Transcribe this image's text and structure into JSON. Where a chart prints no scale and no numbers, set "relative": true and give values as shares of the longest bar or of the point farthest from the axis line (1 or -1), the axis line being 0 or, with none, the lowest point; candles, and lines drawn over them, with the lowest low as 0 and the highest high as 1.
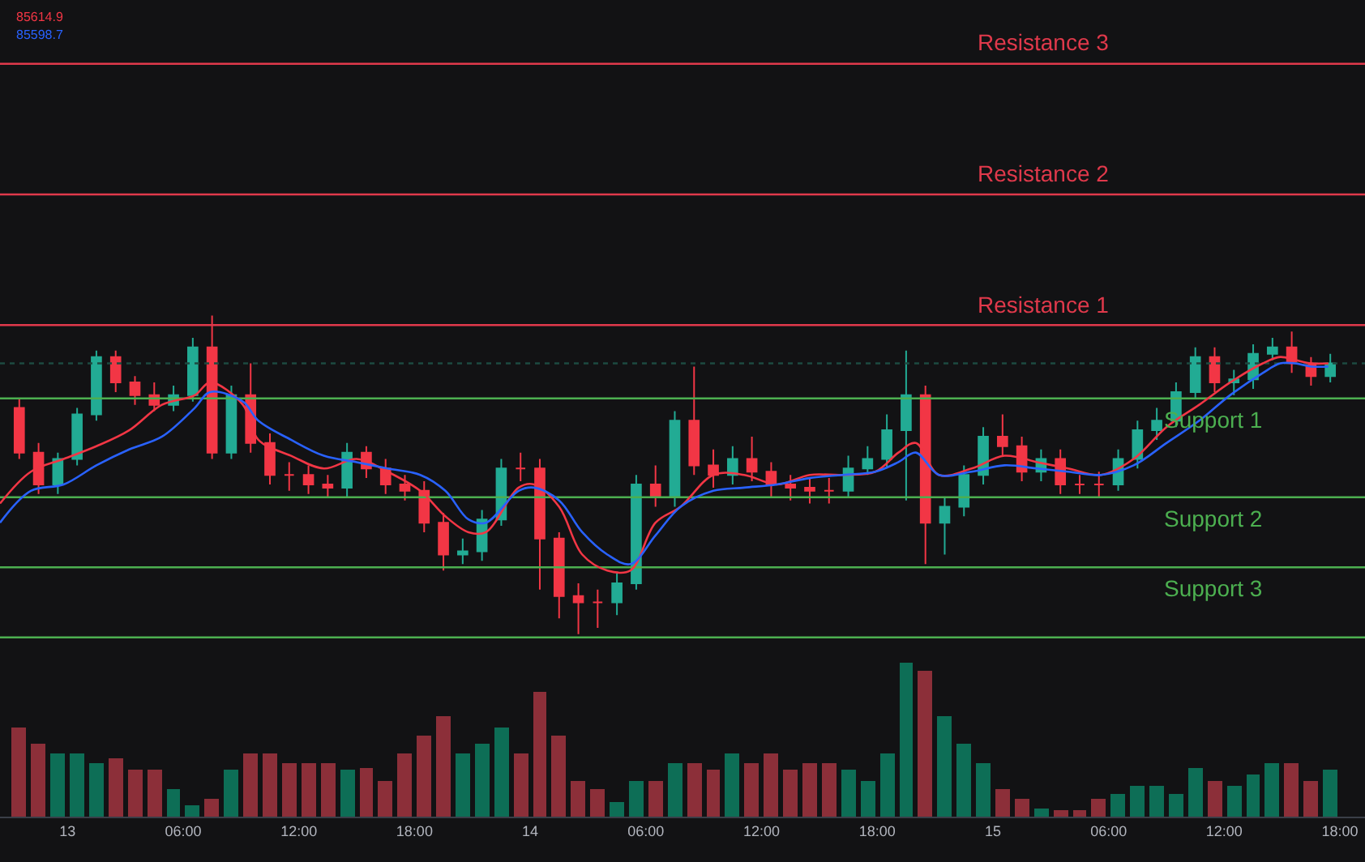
{
  "chart_data": [
    {
      "type": "candlestick",
      "relative": true,
      "x": [
        "--03-12T21:30",
        "--03-12T22:30",
        "--03-12T23:30",
        "--03-13T00:30",
        "--03-13T01:30",
        "--03-13T02:30",
        "--03-13T03:30",
        "--03-13T04:30",
        "--03-13T05:30",
        "--03-13T06:30",
        "--03-13T07:30",
        "--03-13T08:30",
        "--03-13T09:30",
        "--03-13T10:30",
        "--03-13T11:30",
        "--03-13T12:30",
        "--03-13T13:30",
        "--03-13T14:30",
        "--03-13T15:30",
        "--03-13T16:30",
        "--03-13T17:30",
        "--03-13T18:30",
        "--03-13T19:30",
        "--03-13T20:30",
        "--03-13T21:30",
        "--03-13T22:30",
        "--03-13T23:30",
        "--03-14T00:30",
        "--03-14T01:30",
        "--03-14T02:30",
        "--03-14T03:30",
        "--03-14T04:30",
        "--03-14T05:30",
        "--03-14T06:30",
        "--03-14T07:30",
        "--03-14T08:30",
        "--03-14T09:30",
        "--03-14T10:30",
        "--03-14T11:30",
        "--03-14T12:30",
        "--03-14T13:30",
        "--03-14T14:30",
        "--03-14T15:30",
        "--03-14T16:30",
        "--03-14T17:30",
        "--03-14T18:30",
        "--03-14T19:30",
        "--03-14T20:30",
        "--03-14T21:30",
        "--03-14T22:30",
        "--03-14T23:30",
        "--03-15T00:30",
        "--03-15T01:30",
        "--03-15T02:30",
        "--03-15T03:30",
        "--03-15T04:30",
        "--03-15T05:30",
        "--03-15T06:30",
        "--03-15T07:30",
        "--03-15T08:30",
        "--03-15T09:30",
        "--03-15T10:30",
        "--03-15T11:30",
        "--03-15T12:30",
        "--03-15T13:30",
        "--03-15T14:30",
        "--03-15T15:30",
        "--03-15T16:30",
        "--03-15T17:30"
      ],
      "ohlc": [
        [
          0.71,
          0.74,
          0.55,
          0.57
        ],
        [
          0.57,
          0.6,
          0.44,
          0.47
        ],
        [
          0.47,
          0.57,
          0.44,
          0.55
        ],
        [
          0.55,
          0.71,
          0.53,
          0.69
        ],
        [
          0.69,
          0.89,
          0.67,
          0.87
        ],
        [
          0.87,
          0.89,
          0.76,
          0.79
        ],
        [
          0.79,
          0.81,
          0.72,
          0.75
        ],
        [
          0.75,
          0.79,
          0.7,
          0.72
        ],
        [
          0.72,
          0.78,
          0.7,
          0.75
        ],
        [
          0.75,
          0.93,
          0.73,
          0.9
        ],
        [
          0.9,
          1.0,
          0.55,
          0.57
        ],
        [
          0.57,
          0.78,
          0.55,
          0.75
        ],
        [
          0.75,
          0.85,
          0.57,
          0.6
        ],
        [
          0.6,
          0.63,
          0.47,
          0.5
        ],
        [
          0.5,
          0.54,
          0.45,
          0.5
        ],
        [
          0.5,
          0.53,
          0.44,
          0.47
        ],
        [
          0.47,
          0.5,
          0.43,
          0.46
        ],
        [
          0.46,
          0.6,
          0.43,
          0.57
        ],
        [
          0.57,
          0.59,
          0.49,
          0.52
        ],
        [
          0.52,
          0.55,
          0.44,
          0.47
        ],
        [
          0.47,
          0.5,
          0.42,
          0.45
        ],
        [
          0.45,
          0.48,
          0.32,
          0.35
        ],
        [
          0.35,
          0.38,
          0.2,
          0.25
        ],
        [
          0.25,
          0.3,
          0.22,
          0.26
        ],
        [
          0.26,
          0.39,
          0.23,
          0.36
        ],
        [
          0.36,
          0.55,
          0.34,
          0.52
        ],
        [
          0.52,
          0.57,
          0.48,
          0.52
        ],
        [
          0.52,
          0.55,
          0.14,
          0.3
        ],
        [
          0.3,
          0.32,
          0.05,
          0.12
        ],
        [
          0.12,
          0.16,
          0.0,
          0.1
        ],
        [
          0.1,
          0.14,
          0.02,
          0.1
        ],
        [
          0.1,
          0.19,
          0.06,
          0.16
        ],
        [
          0.16,
          0.5,
          0.14,
          0.47
        ],
        [
          0.47,
          0.53,
          0.4,
          0.43
        ],
        [
          0.43,
          0.7,
          0.4,
          0.67
        ],
        [
          0.67,
          0.84,
          0.5,
          0.53
        ],
        [
          0.53,
          0.58,
          0.46,
          0.5
        ],
        [
          0.5,
          0.59,
          0.47,
          0.55
        ],
        [
          0.55,
          0.62,
          0.48,
          0.51
        ],
        [
          0.51,
          0.54,
          0.43,
          0.47
        ],
        [
          0.47,
          0.5,
          0.42,
          0.46
        ],
        [
          0.46,
          0.49,
          0.41,
          0.45
        ],
        [
          0.45,
          0.49,
          0.41,
          0.45
        ],
        [
          0.45,
          0.56,
          0.43,
          0.52
        ],
        [
          0.52,
          0.59,
          0.5,
          0.55
        ],
        [
          0.55,
          0.69,
          0.52,
          0.64
        ],
        [
          0.64,
          0.89,
          0.42,
          0.75
        ],
        [
          0.75,
          0.78,
          0.22,
          0.35
        ],
        [
          0.35,
          0.43,
          0.25,
          0.4
        ],
        [
          0.4,
          0.53,
          0.37,
          0.5
        ],
        [
          0.5,
          0.65,
          0.47,
          0.62
        ],
        [
          0.62,
          0.69,
          0.56,
          0.59
        ],
        [
          0.59,
          0.62,
          0.48,
          0.51
        ],
        [
          0.51,
          0.58,
          0.48,
          0.55
        ],
        [
          0.55,
          0.58,
          0.44,
          0.47
        ],
        [
          0.47,
          0.5,
          0.44,
          0.47
        ],
        [
          0.47,
          0.51,
          0.43,
          0.47
        ],
        [
          0.47,
          0.58,
          0.45,
          0.55
        ],
        [
          0.55,
          0.67,
          0.52,
          0.64
        ],
        [
          0.64,
          0.71,
          0.61,
          0.67
        ],
        [
          0.67,
          0.79,
          0.65,
          0.76
        ],
        [
          0.76,
          0.9,
          0.74,
          0.87
        ],
        [
          0.87,
          0.9,
          0.76,
          0.79
        ],
        [
          0.79,
          0.83,
          0.75,
          0.8
        ],
        [
          0.8,
          0.91,
          0.77,
          0.88
        ],
        [
          0.88,
          0.93,
          0.86,
          0.9
        ],
        [
          0.9,
          0.95,
          0.82,
          0.85
        ],
        [
          0.85,
          0.87,
          0.78,
          0.81
        ],
        [
          0.81,
          0.88,
          0.79,
          0.85
        ]
      ],
      "colors": [
        "#f23645",
        "#f23645",
        "#22ab94",
        "#22ab94",
        "#22ab94",
        "#f23645",
        "#f23645",
        "#f23645",
        "#22ab94",
        "#22ab94",
        "#f23645",
        "#22ab94",
        "#f23645",
        "#f23645",
        "#f23645",
        "#f23645",
        "#f23645",
        "#22ab94",
        "#f23645",
        "#f23645",
        "#f23645",
        "#f23645",
        "#f23645",
        "#22ab94",
        "#22ab94",
        "#22ab94",
        "#f23645",
        "#f23645",
        "#f23645",
        "#f23645",
        "#f23645",
        "#22ab94",
        "#22ab94",
        "#f23645",
        "#22ab94",
        "#f23645",
        "#f23645",
        "#22ab94",
        "#f23645",
        "#f23645",
        "#f23645",
        "#f23645",
        "#f23645",
        "#22ab94",
        "#22ab94",
        "#22ab94",
        "#22ab94",
        "#f23645",
        "#22ab94",
        "#22ab94",
        "#22ab94",
        "#f23645",
        "#f23645",
        "#22ab94",
        "#f23645",
        "#f23645",
        "#f23645",
        "#22ab94",
        "#22ab94",
        "#22ab94",
        "#22ab94",
        "#22ab94",
        "#f23645",
        "#22ab94",
        "#22ab94",
        "#22ab94",
        "#f23645",
        "#f23645",
        "#22ab94"
      ],
      "series": [
        {
          "type": "line",
          "color": "#f23645",
          "x": [
            "--03-12T20:30",
            "--03-12T22:06",
            "--03-12T23:48",
            "--03-13T01:30",
            "--03-13T03:12",
            "--03-13T04:54",
            "--03-13T06:36",
            "--03-13T07:24",
            "--03-13T09:06",
            "--03-13T09:54",
            "--03-13T11:36",
            "--03-13T13:18",
            "--03-13T15:00",
            "--03-13T16:36",
            "--03-13T18:18",
            "--03-13T19:36",
            "--03-13T20:48",
            "--03-13T21:42",
            "--03-13T23:24",
            "--03-14T00:12",
            "--03-14T01:30",
            "--03-14T02:42",
            "--03-14T04:00",
            "--03-14T05:12",
            "--03-14T06:30",
            "--03-14T07:48",
            "--03-14T09:30",
            "--03-14T11:06",
            "--03-14T12:48",
            "--03-14T14:30",
            "--03-14T16:12",
            "--03-14T17:54",
            "--03-14T19:06",
            "--03-14T20:00",
            "--03-14T21:12",
            "--03-14T22:54",
            "--03-15T00:36",
            "--03-15T02:18",
            "--03-15T03:54",
            "--03-15T05:36",
            "--03-15T07:18",
            "--03-15T09:00",
            "--03-15T10:42",
            "--03-15T12:18",
            "--03-15T14:00",
            "--03-15T14:54",
            "--03-15T15:42",
            "--03-15T16:30",
            "--03-15T17:24"
          ],
          "values": [
            0.41,
            0.51,
            0.55,
            0.59,
            0.64,
            0.72,
            0.75,
            0.79,
            0.72,
            0.61,
            0.56,
            0.52,
            0.55,
            0.51,
            0.45,
            0.37,
            0.32,
            0.32,
            0.46,
            0.47,
            0.4,
            0.25,
            0.2,
            0.2,
            0.35,
            0.4,
            0.5,
            0.5,
            0.47,
            0.5,
            0.5,
            0.51,
            0.57,
            0.6,
            0.5,
            0.52,
            0.56,
            0.54,
            0.52,
            0.5,
            0.55,
            0.65,
            0.72,
            0.79,
            0.85,
            0.87,
            0.86,
            0.85,
            0.85
          ]
        },
        {
          "type": "line",
          "color": "#2962ff",
          "x": [
            "--03-12T20:30",
            "--03-12T22:06",
            "--03-12T23:48",
            "--03-13T01:30",
            "--03-13T03:12",
            "--03-13T04:54",
            "--03-13T06:36",
            "--03-13T07:24",
            "--03-13T09:06",
            "--03-13T09:54",
            "--03-13T11:36",
            "--03-13T13:18",
            "--03-13T15:00",
            "--03-13T16:36",
            "--03-13T18:18",
            "--03-13T19:36",
            "--03-13T20:48",
            "--03-13T21:42",
            "--03-13T23:24",
            "--03-14T00:12",
            "--03-14T01:30",
            "--03-14T02:42",
            "--03-14T04:00",
            "--03-14T05:12",
            "--03-14T06:30",
            "--03-14T07:48",
            "--03-14T09:30",
            "--03-14T11:06",
            "--03-14T12:48",
            "--03-14T14:30",
            "--03-14T16:12",
            "--03-14T17:54",
            "--03-14T19:06",
            "--03-14T20:00",
            "--03-14T21:12",
            "--03-14T22:54",
            "--03-15T00:36",
            "--03-15T02:18",
            "--03-15T03:54",
            "--03-15T05:36",
            "--03-15T07:18",
            "--03-15T09:00",
            "--03-15T10:42",
            "--03-15T12:18",
            "--03-15T14:00",
            "--03-15T14:54",
            "--03-15T15:42",
            "--03-15T16:30",
            "--03-15T17:24"
          ],
          "values": [
            0.35,
            0.45,
            0.47,
            0.53,
            0.58,
            0.62,
            0.71,
            0.76,
            0.73,
            0.67,
            0.61,
            0.56,
            0.54,
            0.52,
            0.5,
            0.45,
            0.36,
            0.35,
            0.45,
            0.46,
            0.42,
            0.32,
            0.25,
            0.22,
            0.31,
            0.4,
            0.45,
            0.46,
            0.47,
            0.49,
            0.5,
            0.51,
            0.54,
            0.57,
            0.5,
            0.51,
            0.53,
            0.52,
            0.51,
            0.5,
            0.53,
            0.6,
            0.67,
            0.75,
            0.82,
            0.85,
            0.85,
            0.84,
            0.84
          ]
        }
      ],
      "xlim": [
        "--03-12T20:30",
        "--03-15T19:18"
      ],
      "xticks": [
        {
          "value": "--03-13T00:00",
          "label": "13"
        },
        {
          "value": "--03-13T06:00",
          "label": "06:00"
        },
        {
          "value": "--03-13T12:00",
          "label": "12:00"
        },
        {
          "value": "--03-13T18:00",
          "label": "18:00"
        },
        {
          "value": "--03-14T00:00",
          "label": "14"
        },
        {
          "value": "--03-14T06:00",
          "label": "06:00"
        },
        {
          "value": "--03-14T12:00",
          "label": "12:00"
        },
        {
          "value": "--03-14T18:00",
          "label": "18:00"
        },
        {
          "value": "--03-15T00:00",
          "label": "15"
        },
        {
          "value": "--03-15T06:00",
          "label": "06:00"
        },
        {
          "value": "--03-15T12:00",
          "label": "12:00"
        },
        {
          "value": "--03-15T18:00",
          "label": "18:00"
        }
      ],
      "tick_labels": false,
      "ref_lines": [
        {
          "axis": "y",
          "value": 1.79,
          "label": "Resistance 3",
          "color": "#e0394b"
        },
        {
          "axis": "y",
          "value": 1.38,
          "label": "Resistance 2",
          "color": "#e0394b"
        },
        {
          "axis": "y",
          "value": 0.97,
          "label": "Resistance 1",
          "color": "#e0394b"
        },
        {
          "axis": "y",
          "value": 0.85,
          "label": null,
          "color": "#1d4a40",
          "line_style": "dotted"
        },
        {
          "axis": "y",
          "value": 0.74,
          "label": "Support 1",
          "color": "#4caf50"
        },
        {
          "axis": "y",
          "value": 0.43,
          "label": "Support 2",
          "color": "#4caf50"
        },
        {
          "axis": "y",
          "value": 0.21,
          "label": "Support 3",
          "color": "#4caf50"
        },
        {
          "axis": "y",
          "value": -0.01,
          "label": null,
          "color": "#4caf50"
        }
      ],
      "annotations": [
        "85614.9",
        "85598.7"
      ]
    },
    {
      "type": "bar",
      "relative": true,
      "x": [
        "--03-12T21:30",
        "--03-12T22:30",
        "--03-12T23:30",
        "--03-13T00:30",
        "--03-13T01:30",
        "--03-13T02:30",
        "--03-13T03:30",
        "--03-13T04:30",
        "--03-13T05:30",
        "--03-13T06:30",
        "--03-13T07:30",
        "--03-13T08:30",
        "--03-13T09:30",
        "--03-13T10:30",
        "--03-13T11:30",
        "--03-13T12:30",
        "--03-13T13:30",
        "--03-13T14:30",
        "--03-13T15:30",
        "--03-13T16:30",
        "--03-13T17:30",
        "--03-13T18:30",
        "--03-13T19:30",
        "--03-13T20:30",
        "--03-13T21:30",
        "--03-13T22:30",
        "--03-13T23:30",
        "--03-14T00:30",
        "--03-14T01:30",
        "--03-14T02:30",
        "--03-14T03:30",
        "--03-14T04:30",
        "--03-14T05:30",
        "--03-14T06:30",
        "--03-14T07:30",
        "--03-14T08:30",
        "--03-14T09:30",
        "--03-14T10:30",
        "--03-14T11:30",
        "--03-14T12:30",
        "--03-14T13:30",
        "--03-14T14:30",
        "--03-14T15:30",
        "--03-14T16:30",
        "--03-14T17:30",
        "--03-14T18:30",
        "--03-14T19:30",
        "--03-14T20:30",
        "--03-14T21:30",
        "--03-14T22:30",
        "--03-14T23:30",
        "--03-15T00:30",
        "--03-15T01:30",
        "--03-15T02:30",
        "--03-15T03:30",
        "--03-15T04:30",
        "--03-15T05:30",
        "--03-15T06:30",
        "--03-15T07:30",
        "--03-15T08:30",
        "--03-15T09:30",
        "--03-15T10:30",
        "--03-15T11:30",
        "--03-15T12:30",
        "--03-15T13:30",
        "--03-15T14:30",
        "--03-15T15:30",
        "--03-15T16:30",
        "--03-15T17:30"
      ],
      "values": [
        0.58,
        0.47,
        0.41,
        0.41,
        0.35,
        0.38,
        0.3,
        0.3,
        0.18,
        0.07,
        0.12,
        0.3,
        0.41,
        0.41,
        0.35,
        0.35,
        0.35,
        0.3,
        0.32,
        0.23,
        0.41,
        0.53,
        0.65,
        0.41,
        0.47,
        0.58,
        0.41,
        0.81,
        0.53,
        0.23,
        0.18,
        0.09,
        0.23,
        0.23,
        0.35,
        0.35,
        0.3,
        0.41,
        0.35,
        0.41,
        0.3,
        0.35,
        0.35,
        0.3,
        0.23,
        0.41,
        1.0,
        0.95,
        0.65,
        0.47,
        0.35,
        0.18,
        0.12,
        0.05,
        0.04,
        0.04,
        0.12,
        0.15,
        0.2,
        0.2,
        0.15,
        0.32,
        0.23,
        0.2,
        0.27,
        0.35,
        0.35,
        0.23,
        0.3
      ],
      "colors": [
        "#8c2f39",
        "#8c2f39",
        "#0d6e56",
        "#0d6e56",
        "#0d6e56",
        "#8c2f39",
        "#8c2f39",
        "#8c2f39",
        "#0d6e56",
        "#0d6e56",
        "#8c2f39",
        "#0d6e56",
        "#8c2f39",
        "#8c2f39",
        "#8c2f39",
        "#8c2f39",
        "#8c2f39",
        "#0d6e56",
        "#8c2f39",
        "#8c2f39",
        "#8c2f39",
        "#8c2f39",
        "#8c2f39",
        "#0d6e56",
        "#0d6e56",
        "#0d6e56",
        "#8c2f39",
        "#8c2f39",
        "#8c2f39",
        "#8c2f39",
        "#8c2f39",
        "#0d6e56",
        "#0d6e56",
        "#8c2f39",
        "#0d6e56",
        "#8c2f39",
        "#8c2f39",
        "#0d6e56",
        "#8c2f39",
        "#8c2f39",
        "#8c2f39",
        "#8c2f39",
        "#8c2f39",
        "#0d6e56",
        "#0d6e56",
        "#0d6e56",
        "#0d6e56",
        "#8c2f39",
        "#0d6e56",
        "#0d6e56",
        "#0d6e56",
        "#8c2f39",
        "#8c2f39",
        "#0d6e56",
        "#8c2f39",
        "#8c2f39",
        "#8c2f39",
        "#0d6e56",
        "#0d6e56",
        "#0d6e56",
        "#0d6e56",
        "#0d6e56",
        "#8c2f39",
        "#0d6e56",
        "#0d6e56",
        "#0d6e56",
        "#8c2f39",
        "#8c2f39",
        "#0d6e56"
      ],
      "xlim": [
        "--03-12T20:30",
        "--03-15T19:18"
      ],
      "xticks": [
        {
          "value": "--03-13T00:00",
          "label": "13"
        },
        {
          "value": "--03-13T06:00",
          "label": "06:00"
        },
        {
          "value": "--03-13T12:00",
          "label": "12:00"
        },
        {
          "value": "--03-13T18:00",
          "label": "18:00"
        },
        {
          "value": "--03-14T00:00",
          "label": "14"
        },
        {
          "value": "--03-14T06:00",
          "label": "06:00"
        },
        {
          "value": "--03-14T12:00",
          "label": "12:00"
        },
        {
          "value": "--03-14T18:00",
          "label": "18:00"
        },
        {
          "value": "--03-15T00:00",
          "label": "15"
        },
        {
          "value": "--03-15T06:00",
          "label": "06:00"
        },
        {
          "value": "--03-15T12:00",
          "label": "12:00"
        },
        {
          "value": "--03-15T18:00",
          "label": "18:00"
        }
      ]
    }
  ]
}
